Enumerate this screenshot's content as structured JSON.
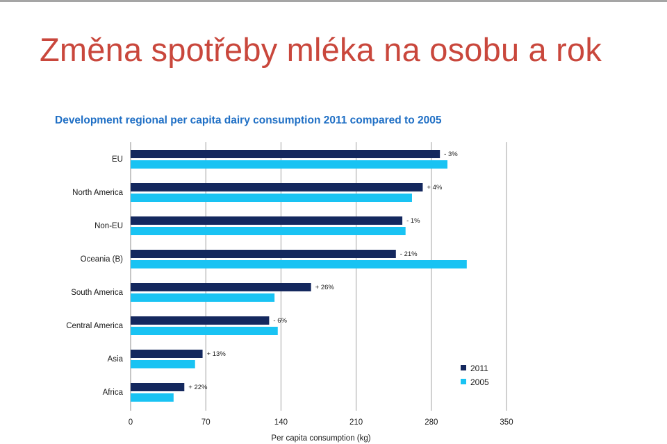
{
  "slide": {
    "title": "Změna spotřeby mléka na osobu a rok"
  },
  "colors": {
    "title": "#c9473c",
    "chart_title": "#1f6fc5",
    "series_2011": "#14285e",
    "series_2005": "#19c3f3",
    "grid": "#a0a0a0",
    "text": "#1a1a1a"
  },
  "chart_data": {
    "type": "bar",
    "orientation": "horizontal",
    "title": "Development regional per capita dairy consumption 2011 compared to 2005",
    "xlabel": "Per capita consumption (kg)",
    "ylabel": "",
    "xlim": [
      0,
      350
    ],
    "xticks": [
      0,
      70,
      140,
      210,
      280,
      350
    ],
    "grid": "vertical",
    "legend_position": "bottom-right",
    "categories": [
      "EU",
      "North America",
      "Non-EU",
      "Oceania (B)",
      "South America",
      "Central America",
      "Asia",
      "Africa"
    ],
    "series": [
      {
        "name": "2011",
        "color": "#14285e",
        "values": [
          288,
          272,
          253,
          247,
          168,
          129,
          67,
          50
        ]
      },
      {
        "name": "2005",
        "color": "#19c3f3",
        "values": [
          295,
          262,
          256,
          313,
          134,
          137,
          60,
          40
        ]
      }
    ],
    "change_labels": [
      "- 3%",
      "+ 4%",
      "- 1%",
      "- 21%",
      "+ 26%",
      "- 6%",
      "+ 13%",
      "+ 22%"
    ]
  }
}
